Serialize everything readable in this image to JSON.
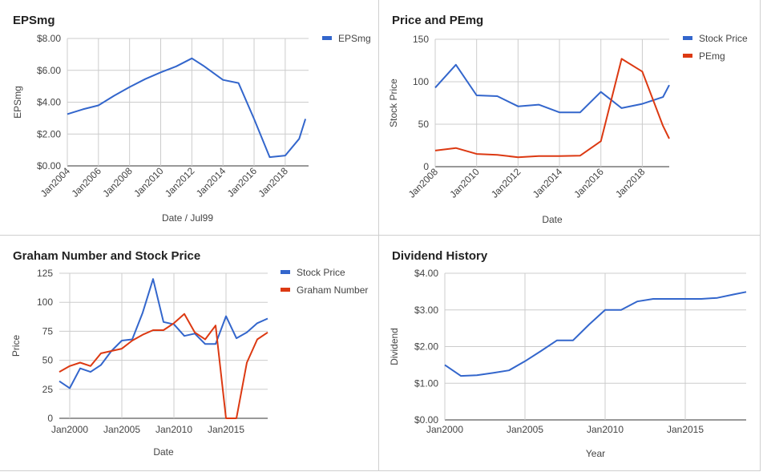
{
  "colors": {
    "blue": "#3366cc",
    "red": "#dc3912",
    "grid": "#cccccc",
    "axis": "#333333",
    "text": "#222222",
    "muted": "#444444"
  },
  "chart_data": [
    {
      "id": "eps",
      "type": "line",
      "title": "EPSmg",
      "xlabel": "Date / Jul99",
      "ylabel": "EPSmg",
      "ylim": [
        0,
        8
      ],
      "xlim": [
        2004.0,
        2019.5
      ],
      "x_ticks": [
        "Jan2004",
        "Jan2006",
        "Jan2008",
        "Jan2010",
        "Jan2012",
        "Jan2014",
        "Jan2016",
        "Jan2018"
      ],
      "y_ticks": [
        "$0.00",
        "$2.00",
        "$4.00",
        "$6.00",
        "$8.00"
      ],
      "legend_position": "top-right",
      "grid": true,
      "series": [
        {
          "name": "EPSmg",
          "color": "#3366cc",
          "x": [
            2004.0,
            2005.0,
            2006.0,
            2007.0,
            2008.0,
            2009.0,
            2010.0,
            2011.0,
            2012.0,
            2012.8,
            2014.0,
            2015.0,
            2016.0,
            2017.0,
            2018.0,
            2018.9,
            2019.3
          ],
          "y": [
            3.25,
            3.55,
            3.8,
            4.4,
            4.95,
            5.45,
            5.87,
            6.25,
            6.75,
            6.25,
            5.4,
            5.2,
            2.95,
            0.55,
            0.65,
            1.7,
            2.95
          ]
        }
      ]
    },
    {
      "id": "price_pe",
      "type": "line",
      "title": "Price and PEmg",
      "xlabel": "Date",
      "ylabel": "Stock Price",
      "ylim": [
        0,
        150
      ],
      "xlim": [
        2008.0,
        2019.3
      ],
      "x_ticks": [
        "Jan2008",
        "Jan2010",
        "Jan2012",
        "Jan2014",
        "Jan2016",
        "Jan2018"
      ],
      "y_ticks": [
        "0",
        "50",
        "100",
        "150"
      ],
      "legend_position": "top-right",
      "grid": true,
      "series": [
        {
          "name": "Stock Price",
          "color": "#3366cc",
          "x": [
            2008.0,
            2009.0,
            2010.0,
            2011.0,
            2012.0,
            2013.0,
            2014.0,
            2015.0,
            2016.0,
            2017.0,
            2018.0,
            2019.0,
            2019.3
          ],
          "y": [
            93,
            120,
            84,
            83,
            71,
            73,
            64,
            64,
            88,
            69,
            74,
            82,
            96
          ]
        },
        {
          "name": "PEmg",
          "color": "#dc3912",
          "x": [
            2008.0,
            2009.0,
            2010.0,
            2011.0,
            2012.0,
            2013.0,
            2014.0,
            2015.0,
            2016.0,
            2017.0,
            2018.0,
            2019.0,
            2019.3
          ],
          "y": [
            19,
            22,
            15,
            14,
            11,
            12.5,
            12.5,
            13,
            30,
            127,
            112,
            48,
            33
          ]
        }
      ]
    },
    {
      "id": "graham",
      "type": "line",
      "title": "Graham Number and Stock Price",
      "xlabel": "Date",
      "ylabel": "Price",
      "ylim": [
        0,
        125
      ],
      "xlim": [
        1999.0,
        2019.0
      ],
      "x_ticks": [
        "Jan2000",
        "Jan2005",
        "Jan2010",
        "Jan2015"
      ],
      "y_ticks": [
        "0",
        "25",
        "50",
        "75",
        "100",
        "125"
      ],
      "legend_position": "top-right",
      "grid": true,
      "series": [
        {
          "name": "Stock Price",
          "color": "#3366cc",
          "x": [
            1999.0,
            2000.0,
            2001.0,
            2002.0,
            2003.0,
            2004.0,
            2005.0,
            2006.0,
            2007.0,
            2008.0,
            2009.0,
            2010.0,
            2011.0,
            2012.0,
            2013.0,
            2014.0,
            2015.0,
            2016.0,
            2017.0,
            2018.0,
            2019.0
          ],
          "y": [
            32,
            26,
            43,
            40,
            46,
            58,
            67,
            68,
            91,
            120,
            83,
            81,
            71,
            73,
            64,
            64,
            88,
            69,
            74,
            82,
            86
          ]
        },
        {
          "name": "Graham Number",
          "color": "#dc3912",
          "x": [
            1999.0,
            2000.0,
            2001.0,
            2002.0,
            2003.0,
            2004.0,
            2005.0,
            2006.0,
            2007.0,
            2008.0,
            2009.0,
            2010.0,
            2011.0,
            2012.0,
            2013.0,
            2014.0,
            2015.0,
            2016.0,
            2017.0,
            2018.0,
            2019.0
          ],
          "y": [
            40,
            45,
            48,
            45,
            56,
            58,
            60,
            67,
            72,
            76,
            76,
            82,
            90,
            74,
            68,
            80,
            0,
            0,
            48,
            68,
            74
          ]
        }
      ]
    },
    {
      "id": "dividend",
      "type": "line",
      "title": "Dividend History",
      "xlabel": "Year",
      "ylabel": "Dividend",
      "ylim": [
        0,
        4
      ],
      "xlim": [
        2000.0,
        2018.8
      ],
      "x_ticks": [
        "Jan2000",
        "Jan2005",
        "Jan2010",
        "Jan2015"
      ],
      "y_ticks": [
        "$0.00",
        "$1.00",
        "$2.00",
        "$3.00",
        "$4.00"
      ],
      "legend_position": "none",
      "grid": true,
      "series": [
        {
          "name": "",
          "color": "#3366cc",
          "x": [
            2000.0,
            2001.0,
            2002.0,
            2003.0,
            2004.0,
            2005.0,
            2006.0,
            2007.0,
            2008.0,
            2009.0,
            2010.0,
            2011.0,
            2012.0,
            2013.0,
            2014.0,
            2015.0,
            2016.0,
            2017.0,
            2018.0,
            2018.8
          ],
          "y": [
            1.5,
            1.2,
            1.22,
            1.28,
            1.35,
            1.6,
            1.88,
            2.17,
            2.17,
            2.6,
            3.0,
            3.0,
            3.23,
            3.3,
            3.3,
            3.3,
            3.3,
            3.33,
            3.42,
            3.49
          ]
        }
      ]
    }
  ]
}
